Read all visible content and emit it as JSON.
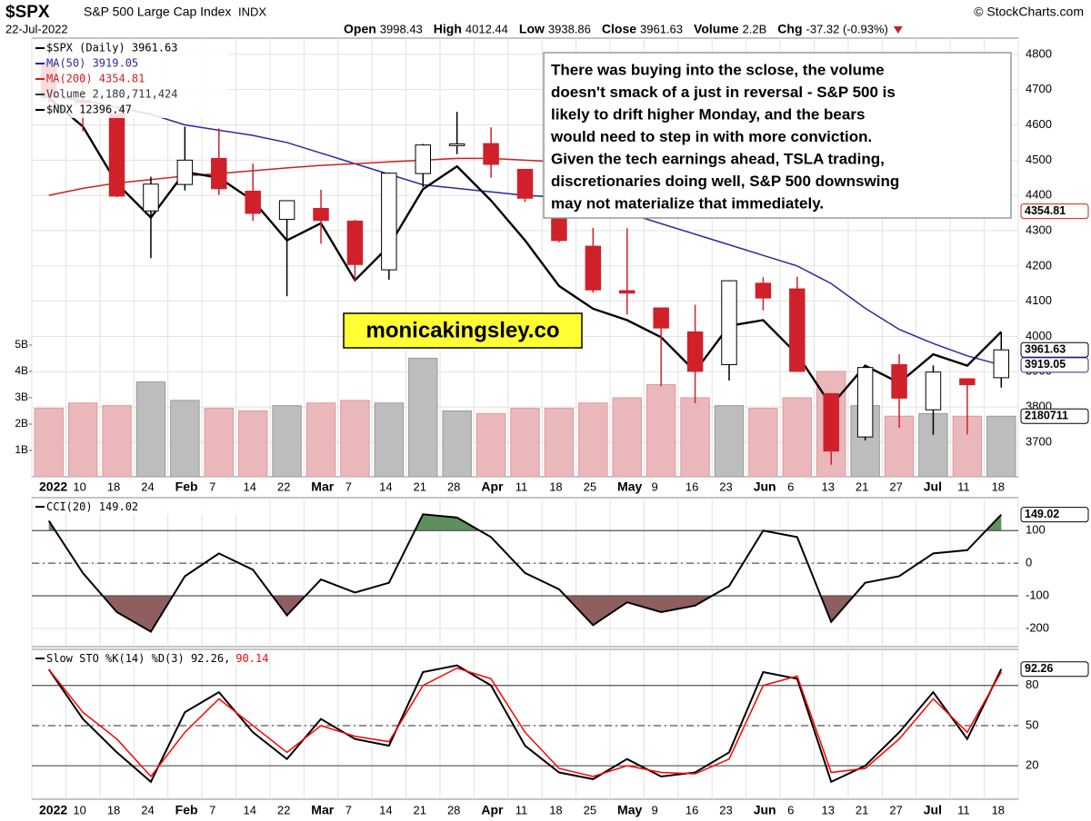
{
  "header": {
    "symbol": "$SPX",
    "name": "S&P 500 Large Cap Index",
    "exchange": "INDX",
    "date": "22-Jul-2022",
    "stats": [
      {
        "label": "Open",
        "value": 3998.43
      },
      {
        "label": "High",
        "value": 4012.44
      },
      {
        "label": "Low",
        "value": 3938.86
      },
      {
        "label": "Close",
        "value": 3961.63
      },
      {
        "label": "Volume",
        "value": "2.2B"
      },
      {
        "label": "Chg",
        "value": "-37.32 (-0.93%)"
      }
    ],
    "credit": "© StockCharts.com"
  },
  "annotation": [
    "There was buying into the sclose, the volume",
    "doesn't smack of a just in reversal - S&P 500 is",
    "likely to drift higher Monday, and the bears",
    "would need to step in with more conviction.",
    "Given the tech earnings ahead, TSLA trading,",
    "discretionaries doing well, S&P 500 downswing",
    "may not materialize that immediately."
  ],
  "watermark": "monicakingsley.co",
  "chart_data": [
    {
      "type": "candlestick",
      "categories": [
        "2022",
        "10",
        "18",
        "24",
        "Feb",
        "7",
        "14",
        "22",
        "Mar",
        "7",
        "14",
        "21",
        "28",
        "Apr",
        "11",
        "18",
        "25",
        "May",
        "9",
        "16",
        "23",
        "Jun",
        "6",
        "13",
        "21",
        "27",
        "Jul",
        "11",
        "18"
      ],
      "ylim": [
        3602,
        4846
      ],
      "yticks": [
        3700,
        3800,
        3900,
        4000,
        4100,
        4200,
        4300,
        4400,
        4500,
        4600,
        4700,
        4800
      ],
      "y2lim": [
        9850,
        17550
      ],
      "series": [
        {
          "name": "$SPX (Daily) 3961.63",
          "color": "#d0202a",
          "tag": "3961.63",
          "open": [
            4778,
            4670,
            4632,
            4356,
            4431,
            4505,
            4412,
            4332,
            4363,
            4327,
            4189,
            4462,
            4541,
            4547,
            4474,
            4385,
            4256,
            4130,
            4081,
            4013,
            3920,
            4151,
            4135,
            3838,
            3715,
            3920,
            3792,
            3880,
            3883
          ],
          "high": [
            4818,
            4748,
            4632,
            4453,
            4595,
            4590,
            4490,
            4385,
            4416,
            4331,
            4465,
            4546,
            4637,
            4593,
            4471,
            4512,
            4308,
            4307,
            4081,
            4090,
            4159,
            4168,
            4169,
            3838,
            3913,
            3950,
            3918,
            3880,
            4012
          ],
          "low": [
            4662,
            4582,
            4395,
            4222,
            4414,
            4401,
            4328,
            4114,
            4263,
            4157,
            4161,
            4424,
            4517,
            4450,
            4381,
            4267,
            4124,
            4062,
            3859,
            3811,
            3875,
            4074,
            3900,
            3636,
            3705,
            3741,
            3721,
            3722,
            3855
          ],
          "close": [
            4677,
            4662,
            4398,
            4432,
            4500,
            4419,
            4349,
            4385,
            4329,
            4204,
            4463,
            4543,
            4546,
            4488,
            4392,
            4272,
            4132,
            4123,
            4024,
            3901,
            4158,
            4109,
            3901,
            3675,
            3912,
            3825,
            3899,
            3863,
            3962
          ]
        }
      ],
      "overlays": [
        {
          "name": "MA(50) 3919.05",
          "color": "#2a2aa0",
          "tag": "3919.05",
          "values": [
            4680,
            4670,
            4650,
            4630,
            4600,
            4585,
            4570,
            4550,
            4520,
            4490,
            4460,
            4430,
            4420,
            4410,
            4400,
            4395,
            4380,
            4350,
            4320,
            4290,
            4260,
            4230,
            4200,
            4150,
            4080,
            4020,
            3980,
            3945,
            3919
          ]
        },
        {
          "name": "MA(200) 4354.81",
          "color": "#d02020",
          "tag": "4354.81",
          "values": [
            4400,
            4420,
            4435,
            4445,
            4455,
            4462,
            4470,
            4478,
            4485,
            4490,
            4495,
            4500,
            4505,
            4505,
            4500,
            4495,
            4490,
            4482,
            4472,
            4462,
            4450,
            4440,
            4425,
            4410,
            4395,
            4385,
            4372,
            4363,
            4355
          ]
        },
        {
          "name": "$NDX 12396.47",
          "color": "#000000",
          "axis": "y2",
          "values": [
            16500,
            16000,
            15000,
            14400,
            15200,
            15100,
            14700,
            14000,
            14300,
            13300,
            13900,
            14900,
            15300,
            14700,
            14000,
            13200,
            12800,
            12600,
            12300,
            11700,
            12500,
            12600,
            12000,
            11100,
            11800,
            11500,
            12000,
            11800,
            12396
          ]
        }
      ],
      "volume": {
        "name": "Volume 2,180,711,424",
        "tag": "2180711",
        "ylim": [
          0,
          16650000000
        ],
        "yticks": [
          {
            "value": 1000000000,
            "label": "1B"
          },
          {
            "value": 2000000000,
            "label": "2B"
          },
          {
            "value": 3000000000,
            "label": "3B"
          },
          {
            "value": 4000000000,
            "label": "4B"
          },
          {
            "value": 5000000000,
            "label": "5B"
          }
        ],
        "values": [
          2600000000,
          2800000000,
          2700000000,
          3600000000,
          2900000000,
          2600000000,
          2500000000,
          2700000000,
          2800000000,
          2900000000,
          2800000000,
          4500000000,
          2500000000,
          2400000000,
          2600000000,
          2600000000,
          2800000000,
          3000000000,
          3500000000,
          3000000000,
          2700000000,
          2600000000,
          3000000000,
          4000000000,
          2700000000,
          2300000000,
          2400000000,
          2300000000,
          2300000000
        ]
      },
      "grid": true
    },
    {
      "type": "line",
      "categories": [
        "2022",
        "10",
        "18",
        "24",
        "Feb",
        "7",
        "14",
        "22",
        "Mar",
        "7",
        "14",
        "21",
        "28",
        "Apr",
        "11",
        "18",
        "25",
        "May",
        "9",
        "16",
        "23",
        "Jun",
        "6",
        "13",
        "21",
        "27",
        "Jul",
        "11",
        "18"
      ],
      "ylim": [
        -256,
        201
      ],
      "yticks": [
        -200,
        -100,
        0,
        100
      ],
      "levels": [
        {
          "value": 100,
          "style": "solid",
          "fill": "#5f8f5f",
          "side": "above"
        },
        {
          "value": 0,
          "style": "dash"
        },
        {
          "value": -100,
          "style": "solid",
          "fill": "#8f5f5f",
          "side": "below"
        }
      ],
      "series": [
        {
          "name": "CCI(20) 149.02",
          "color": "#000000",
          "tag": "149.02",
          "values": [
            130,
            -30,
            -150,
            -210,
            -40,
            30,
            -20,
            -160,
            -50,
            -90,
            -60,
            150,
            140,
            80,
            -30,
            -80,
            -190,
            -120,
            -150,
            -130,
            -70,
            100,
            80,
            -180,
            -60,
            -40,
            30,
            40,
            149.02
          ]
        }
      ],
      "grid": true,
      "show_x_labels": false
    },
    {
      "type": "line",
      "categories": [
        "2022",
        "10",
        "18",
        "24",
        "Feb",
        "7",
        "14",
        "22",
        "Mar",
        "7",
        "14",
        "21",
        "28",
        "Apr",
        "11",
        "18",
        "25",
        "May",
        "9",
        "16",
        "23",
        "Jun",
        "6",
        "13",
        "21",
        "27",
        "Jul",
        "11",
        "18"
      ],
      "ylim": [
        -5,
        107
      ],
      "yticks": [
        20,
        50,
        80
      ],
      "levels": [
        {
          "value": 80,
          "style": "solid"
        },
        {
          "value": 50,
          "style": "dash"
        },
        {
          "value": 20,
          "style": "solid"
        }
      ],
      "series": [
        {
          "name": "Slow STO %K(14) %D(3) 92.26,",
          "color": "#000000",
          "tag": "92.26",
          "values": [
            92,
            55,
            30,
            8,
            60,
            75,
            45,
            25,
            55,
            40,
            35,
            90,
            95,
            80,
            35,
            15,
            10,
            25,
            12,
            15,
            30,
            90,
            85,
            8,
            20,
            45,
            75,
            40,
            92.26
          ]
        },
        {
          "name": "90.14",
          "color": "#ff0000",
          "values": [
            92,
            60,
            40,
            12,
            45,
            70,
            50,
            30,
            50,
            42,
            38,
            80,
            93,
            85,
            45,
            18,
            12,
            20,
            15,
            14,
            25,
            80,
            87,
            15,
            18,
            40,
            70,
            45,
            90.14
          ]
        }
      ],
      "grid": true,
      "show_x_labels": true
    }
  ]
}
